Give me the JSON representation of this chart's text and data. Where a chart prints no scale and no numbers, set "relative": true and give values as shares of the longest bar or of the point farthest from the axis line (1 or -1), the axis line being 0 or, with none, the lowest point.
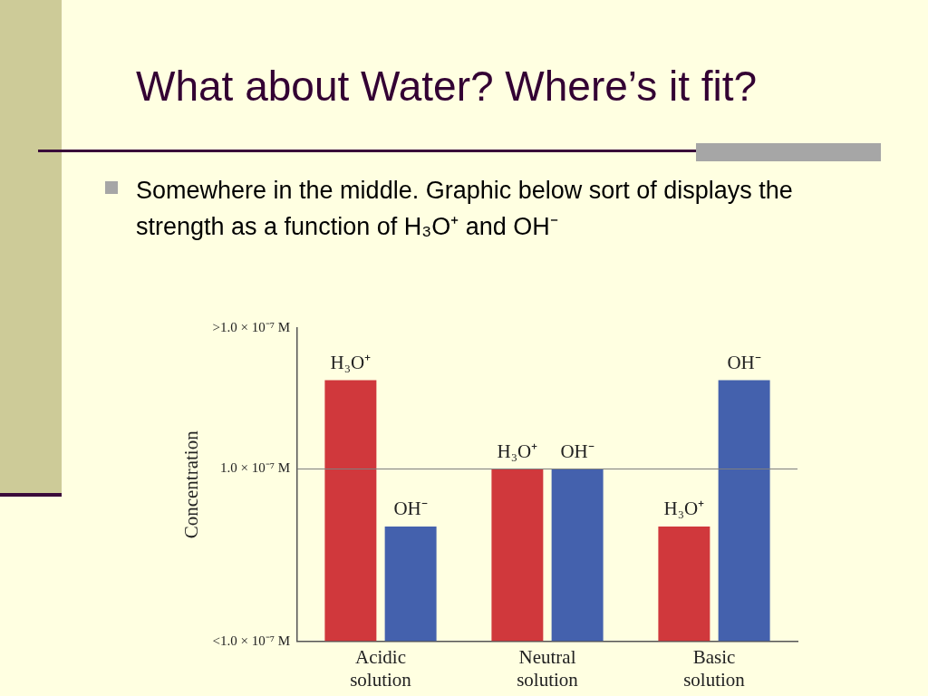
{
  "chart_data": {
    "type": "bar",
    "title": "What about Water?  Where’s it fit?",
    "subtitle": "Somewhere in the middle.  Graphic below sort of displays the strength as a function of H₃O⁺ and OH⁻",
    "ylabel": "Concentration",
    "categories": [
      "Acidic solution",
      "Neutral solution",
      "Basic solution"
    ],
    "series": [
      {
        "name": "H₃O⁺",
        "color": "#d0383c",
        "values": [
          1,
          0.66,
          0.44
        ]
      },
      {
        "name": "OH⁻",
        "color": "#4461ad",
        "values": [
          0.44,
          0.66,
          1
        ]
      }
    ],
    "relative": true,
    "annotations": [
      "<1.0 × 10⁻⁷ M",
      ">1.0 × 10⁻⁷ M"
    ],
    "ref_lines": [
      {
        "axis": "y",
        "value": 0.66,
        "label": "1.0 × 10⁻⁷ M",
        "color": "#7f7f7f"
      }
    ],
    "grid": false,
    "legend": false
  }
}
